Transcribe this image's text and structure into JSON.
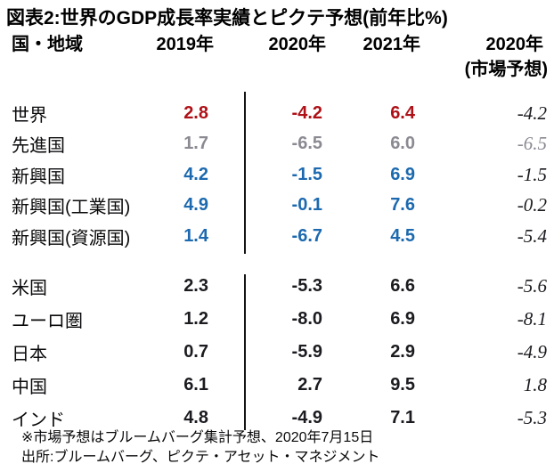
{
  "title": "図表2:世界のGDP成長率実績とピクテ予想(前年比%)",
  "colors": {
    "world_accent": "#ae1117",
    "advanced_gray": "#8a8a92",
    "emerging_blue": "#1c69af",
    "default_dark": "#1b1b20"
  },
  "table": {
    "headers": {
      "region": "国・地域",
      "y2019": "2019年",
      "y2020": "2020年",
      "y2021": "2021年",
      "y2020_market": "2020年",
      "y2020_market_sub": "(市場予想)"
    },
    "groups": [
      {
        "rows": [
          {
            "region": "世界",
            "v2019": "2.8",
            "v2020": "-4.2",
            "v2021": "6.4",
            "market": "-4.2"
          },
          {
            "region": "先進国",
            "v2019": "1.7",
            "v2020": "-6.5",
            "v2021": "6.0",
            "market": "-6.5"
          },
          {
            "region": "新興国",
            "v2019": "4.2",
            "v2020": "-1.5",
            "v2021": "6.9",
            "market": "-1.5"
          },
          {
            "region": "新興国(工業国)",
            "v2019": "4.9",
            "v2020": "-0.1",
            "v2021": "7.6",
            "market": "-0.2"
          },
          {
            "region": "新興国(資源国)",
            "v2019": "1.4",
            "v2020": "-6.7",
            "v2021": "4.5",
            "market": "-5.4"
          }
        ]
      },
      {
        "rows": [
          {
            "region": "米国",
            "v2019": "2.3",
            "v2020": "-5.3",
            "v2021": "6.6",
            "market": "-5.6"
          },
          {
            "region": "ユーロ圏",
            "v2019": "1.2",
            "v2020": "-8.0",
            "v2021": "6.9",
            "market": "-8.1"
          },
          {
            "region": "日本",
            "v2019": "0.7",
            "v2020": "-5.9",
            "v2021": "2.9",
            "market": "-4.9"
          },
          {
            "region": "中国",
            "v2019": "6.1",
            "v2020": "2.7",
            "v2021": "9.5",
            "market": "1.8"
          },
          {
            "region": "インド",
            "v2019": "4.8",
            "v2020": "-4.9",
            "v2021": "7.1",
            "market": "-5.3"
          }
        ]
      }
    ]
  },
  "footnotes": {
    "line1": "※市場予想はブルームバーグ集計予想、2020年7月15日",
    "line2": "出所:ブルームバーグ、ピクテ・アセット・マネジメント"
  },
  "chart_data": {
    "type": "table",
    "title": "図表2:世界のGDP成長率実績とピクテ予想(前年比%)",
    "columns": [
      "国・地域",
      "2019年",
      "2020年",
      "2021年",
      "2020年(市場予想)"
    ],
    "rows": [
      [
        "世界",
        2.8,
        -4.2,
        6.4,
        -4.2
      ],
      [
        "先進国",
        1.7,
        -6.5,
        6.0,
        -6.5
      ],
      [
        "新興国",
        4.2,
        -1.5,
        6.9,
        -1.5
      ],
      [
        "新興国(工業国)",
        4.9,
        -0.1,
        7.6,
        -0.2
      ],
      [
        "新興国(資源国)",
        1.4,
        -6.7,
        4.5,
        -5.4
      ],
      [
        "米国",
        2.3,
        -5.3,
        6.6,
        -5.6
      ],
      [
        "ユーロ圏",
        1.2,
        -8.0,
        6.9,
        -8.1
      ],
      [
        "日本",
        0.7,
        -5.9,
        2.9,
        -4.9
      ],
      [
        "中国",
        6.1,
        2.7,
        9.5,
        1.8
      ],
      [
        "インド",
        4.8,
        -4.9,
        7.1,
        -5.3
      ]
    ],
    "notes": [
      "※市場予想はブルームバーグ集計予想、2020年7月15日",
      "出所:ブルームバーグ、ピクテ・アセット・マネジメント"
    ]
  }
}
